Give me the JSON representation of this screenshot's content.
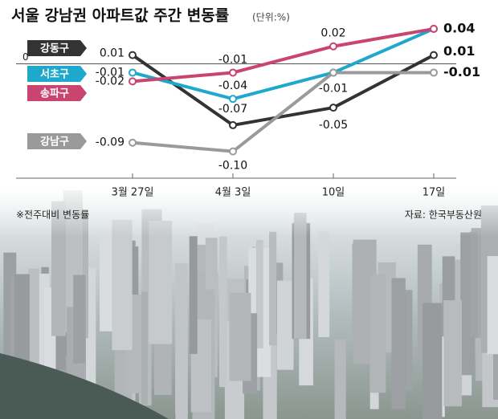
{
  "chart_data": {
    "type": "line",
    "title": "서울 강남권 아파트값 주간 변동률",
    "subtitle": "(단위:%)",
    "note": "※전주대비 변동률",
    "source": "자료: 한국부동산원",
    "categories": [
      "3월 27일",
      "4월 3일",
      "10일",
      "17일"
    ],
    "ylim": [
      -0.115,
      0.05
    ],
    "yticks": [
      0
    ],
    "series": [
      {
        "name": "강동구",
        "color": "#333333",
        "values": [
          0.01,
          -0.07,
          -0.05,
          0.01
        ],
        "value_labels": [
          "0.01",
          "-0.07",
          "-0.05",
          "0.01"
        ]
      },
      {
        "name": "서초구",
        "color": "#1ea8cc",
        "values": [
          -0.01,
          -0.04,
          -0.01,
          0.04
        ],
        "value_labels": [
          "-0.01",
          "-0.04",
          "-0.01",
          "0.04"
        ]
      },
      {
        "name": "송파구",
        "color": "#c9456f",
        "values": [
          -0.02,
          -0.01,
          0.02,
          0.04
        ],
        "value_labels": [
          "-0.02",
          "-0.01",
          "0.02",
          null
        ]
      },
      {
        "name": "강남구",
        "color": "#9a9a9a",
        "values": [
          -0.09,
          -0.1,
          -0.01,
          -0.01
        ],
        "value_labels": [
          "-0.09",
          "-0.10",
          null,
          "-0.01"
        ]
      }
    ]
  }
}
